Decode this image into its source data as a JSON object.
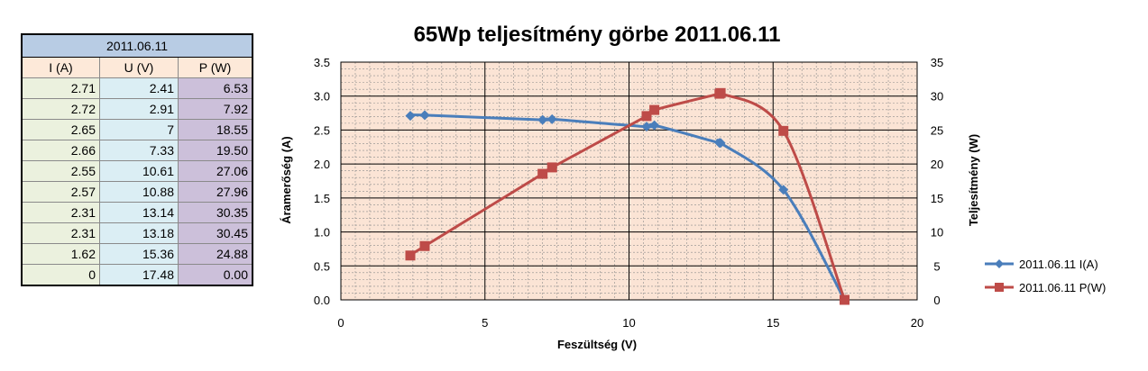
{
  "table": {
    "date": "2011.06.11",
    "headers": [
      "I (A)",
      "U (V)",
      "P (W)"
    ],
    "rows": [
      [
        "2.71",
        "2.41",
        "6.53"
      ],
      [
        "2.72",
        "2.91",
        "7.92"
      ],
      [
        "2.65",
        "7",
        "18.55"
      ],
      [
        "2.66",
        "7.33",
        "19.50"
      ],
      [
        "2.55",
        "10.61",
        "27.06"
      ],
      [
        "2.57",
        "10.88",
        "27.96"
      ],
      [
        "2.31",
        "13.14",
        "30.35"
      ],
      [
        "2.31",
        "13.18",
        "30.45"
      ],
      [
        "1.62",
        "15.36",
        "24.88"
      ],
      [
        "0",
        "17.48",
        "0.00"
      ]
    ]
  },
  "chart_data": {
    "type": "line",
    "title": "65Wp teljesítmény görbe 2011.06.11",
    "xlabel": "Feszültség (V)",
    "ylabel": "Áramerőség (A)",
    "y2label": "Teljesítmény (W)",
    "xlim": [
      0,
      20
    ],
    "ylim": [
      0,
      3.5
    ],
    "y2lim": [
      0,
      35
    ],
    "xticks": [
      0,
      5,
      10,
      15,
      20
    ],
    "yticks": [
      "0.0",
      "0.5",
      "1.0",
      "1.5",
      "2.0",
      "2.5",
      "3.0",
      "3.5"
    ],
    "y2ticks": [
      0,
      5,
      10,
      15,
      20,
      25,
      30,
      35
    ],
    "grid": true,
    "legend_position": "right",
    "series": [
      {
        "name": "2011.06.11 I(A)",
        "axis": "left",
        "color": "#4a7ebb",
        "marker": "diamond",
        "x": [
          2.41,
          2.91,
          7,
          7.33,
          10.61,
          10.88,
          13.14,
          13.18,
          15.36,
          17.48
        ],
        "y": [
          2.71,
          2.72,
          2.65,
          2.66,
          2.55,
          2.57,
          2.31,
          2.31,
          1.62,
          0
        ]
      },
      {
        "name": "2011.06.11 P(W)",
        "axis": "right",
        "color": "#be4b48",
        "marker": "square",
        "x": [
          2.41,
          2.91,
          7,
          7.33,
          10.61,
          10.88,
          13.14,
          13.18,
          15.36,
          17.48
        ],
        "y": [
          6.53,
          7.92,
          18.55,
          19.5,
          27.06,
          27.96,
          30.35,
          30.45,
          24.88,
          0
        ]
      }
    ],
    "plot_background": "#fbe4d5"
  }
}
